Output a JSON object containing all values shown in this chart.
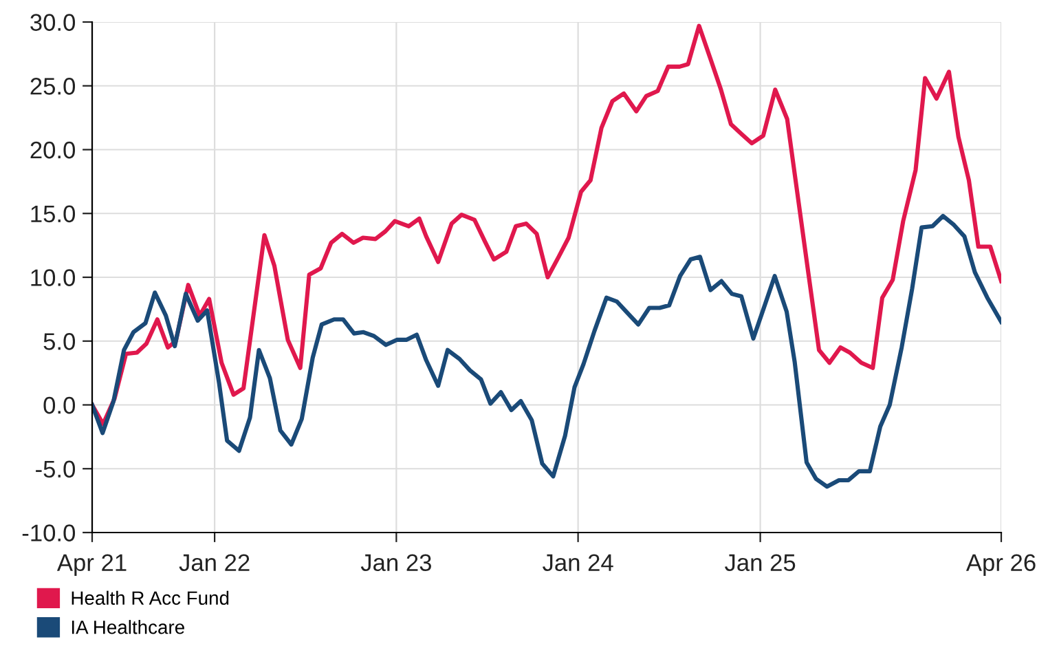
{
  "chart_data": {
    "type": "line",
    "xlim": [
      "2021-04-30",
      "2026-04-30"
    ],
    "xticks": [
      {
        "value": "2021-04-30",
        "label": "Apr 21"
      },
      {
        "value": "2022-01-01",
        "label": "Jan 22"
      },
      {
        "value": "2023-01-01",
        "label": "Jan 23"
      },
      {
        "value": "2024-01-01",
        "label": "Jan 24"
      },
      {
        "value": "2025-01-01",
        "label": "Jan 25"
      },
      {
        "value": "2026-04-30",
        "label": "Apr 26"
      }
    ],
    "ylim": [
      -10,
      30
    ],
    "yticks": [
      {
        "value": -10,
        "label": "-10.0"
      },
      {
        "value": -5,
        "label": "-5.0"
      },
      {
        "value": 0,
        "label": "0.0"
      },
      {
        "value": 5,
        "label": "5.0"
      },
      {
        "value": 10,
        "label": "10.0"
      },
      {
        "value": 15,
        "label": "15.0"
      },
      {
        "value": 20,
        "label": "20.0"
      },
      {
        "value": 25,
        "label": "25.0"
      },
      {
        "value": 30,
        "label": "30.0"
      }
    ],
    "grid": true,
    "legend": "bottom left",
    "marker": "none",
    "line_style": "solid",
    "series": [
      {
        "name": "Health R Acc Fund",
        "color": "#e0184d",
        "x": [
          "2021-04-30",
          "2021-05-22",
          "2021-06-14",
          "2021-07-07",
          "2021-07-29",
          "2021-08-17",
          "2021-09-08",
          "2021-09-29",
          "2021-10-15",
          "2021-11-09",
          "2021-12-02",
          "2021-12-21",
          "2022-01-15",
          "2022-02-08",
          "2022-02-28",
          "2022-04-11",
          "2022-05-01",
          "2022-05-28",
          "2022-06-22",
          "2022-07-10",
          "2022-08-02",
          "2022-08-23",
          "2022-09-14",
          "2022-10-07",
          "2022-10-26",
          "2022-11-20",
          "2022-12-10",
          "2022-12-29",
          "2023-01-26",
          "2023-02-16",
          "2023-03-02",
          "2023-03-26",
          "2023-04-22",
          "2023-05-12",
          "2023-06-07",
          "2023-06-28",
          "2023-07-16",
          "2023-08-10",
          "2023-08-29",
          "2023-09-19",
          "2023-10-10",
          "2023-11-01",
          "2023-11-23",
          "2023-12-13",
          "2024-01-07",
          "2024-01-26",
          "2024-02-17",
          "2024-03-10",
          "2024-04-02",
          "2024-04-27",
          "2024-05-17",
          "2024-06-09",
          "2024-06-30",
          "2024-07-23",
          "2024-08-09",
          "2024-08-31",
          "2024-09-24",
          "2024-10-14",
          "2024-11-03",
          "2024-11-25",
          "2024-12-15",
          "2025-01-07",
          "2025-01-31",
          "2025-02-24",
          "2025-04-08",
          "2025-04-29",
          "2025-05-20",
          "2025-06-11",
          "2025-06-30",
          "2025-07-23",
          "2025-08-15",
          "2025-09-03",
          "2025-09-24",
          "2025-10-15",
          "2025-11-09",
          "2025-11-28",
          "2025-12-21",
          "2026-01-15",
          "2026-02-03",
          "2026-02-24",
          "2026-03-15",
          "2026-04-08",
          "2026-04-30"
        ],
        "values": [
          0,
          -1.5,
          0.5,
          4.0,
          4.1,
          4.8,
          6.7,
          4.5,
          5.0,
          9.4,
          7.0,
          8.3,
          3.3,
          0.8,
          1.3,
          13.3,
          10.9,
          5.1,
          2.9,
          10.2,
          10.7,
          12.7,
          13.4,
          12.7,
          13.1,
          13.0,
          13.6,
          14.4,
          14.0,
          14.6,
          13.2,
          11.2,
          14.2,
          14.9,
          14.5,
          12.8,
          11.4,
          12.0,
          14.0,
          14.2,
          13.4,
          10.0,
          11.6,
          13.1,
          16.7,
          17.6,
          21.7,
          23.8,
          24.4,
          23.0,
          24.2,
          24.6,
          26.5,
          26.5,
          26.7,
          29.7,
          27.0,
          24.7,
          22.0,
          21.2,
          20.5,
          21.1,
          24.7,
          22.4,
          10.2,
          4.3,
          3.3,
          4.5,
          4.1,
          3.3,
          2.9,
          8.4,
          9.8,
          14.4,
          18.4,
          25.6,
          24.0,
          26.1,
          21.0,
          17.6,
          12.4,
          12.4,
          9.7
        ]
      },
      {
        "name": "IA Healthcare",
        "color": "#1a4a78",
        "x": [
          "2021-04-30",
          "2021-05-21",
          "2021-06-12",
          "2021-07-03",
          "2021-07-22",
          "2021-08-15",
          "2021-09-03",
          "2021-09-25",
          "2021-10-13",
          "2021-11-04",
          "2021-11-28",
          "2021-12-17",
          "2022-01-10",
          "2022-01-26",
          "2022-02-19",
          "2022-03-13",
          "2022-03-31",
          "2022-04-22",
          "2022-05-13",
          "2022-06-04",
          "2022-06-25",
          "2022-07-17",
          "2022-08-04",
          "2022-08-29",
          "2022-09-16",
          "2022-10-08",
          "2022-10-27",
          "2022-11-17",
          "2022-12-11",
          "2023-01-02",
          "2023-01-21",
          "2023-02-11",
          "2023-03-02",
          "2023-03-26",
          "2023-04-14",
          "2023-05-08",
          "2023-05-29",
          "2023-06-20",
          "2023-07-09",
          "2023-07-30",
          "2023-08-20",
          "2023-09-08",
          "2023-09-30",
          "2023-10-21",
          "2023-11-12",
          "2023-12-06",
          "2023-12-25",
          "2024-01-12",
          "2024-02-03",
          "2024-02-27",
          "2024-03-19",
          "2024-04-07",
          "2024-05-01",
          "2024-05-23",
          "2024-06-13",
          "2024-07-02",
          "2024-07-24",
          "2024-08-14",
          "2024-09-02",
          "2024-09-23",
          "2024-10-15",
          "2024-11-05",
          "2024-11-24",
          "2024-12-18",
          "2025-01-09",
          "2025-01-30",
          "2025-02-23",
          "2025-03-11",
          "2025-04-04",
          "2025-04-23",
          "2025-05-15",
          "2025-06-08",
          "2025-06-27",
          "2025-07-18",
          "2025-08-09",
          "2025-08-30",
          "2025-09-18",
          "2025-10-12",
          "2025-11-02",
          "2025-11-21",
          "2025-12-13",
          "2026-01-03",
          "2026-01-25",
          "2026-02-15",
          "2026-03-08",
          "2026-04-02",
          "2026-04-30"
        ],
        "values": [
          0,
          -2.2,
          0.3,
          4.3,
          5.7,
          6.4,
          8.8,
          7.0,
          4.6,
          8.7,
          6.6,
          7.4,
          1.7,
          -2.8,
          -3.6,
          -1.0,
          4.3,
          2.1,
          -2.0,
          -3.1,
          -1.1,
          3.7,
          6.3,
          6.7,
          6.7,
          5.6,
          5.7,
          5.4,
          4.7,
          5.1,
          5.1,
          5.5,
          3.5,
          1.5,
          4.3,
          3.6,
          2.7,
          2.0,
          0.1,
          1.0,
          -0.4,
          0.3,
          -1.2,
          -4.6,
          -5.6,
          -2.4,
          1.4,
          3.2,
          5.8,
          8.4,
          8.1,
          7.3,
          6.3,
          7.6,
          7.6,
          7.8,
          10.1,
          11.4,
          11.6,
          9.0,
          9.7,
          8.7,
          8.5,
          5.2,
          7.7,
          10.1,
          7.3,
          3.4,
          -4.5,
          -5.8,
          -6.4,
          -5.9,
          -5.9,
          -5.2,
          -5.2,
          -1.7,
          0.0,
          4.5,
          9.1,
          13.9,
          14.0,
          14.8,
          14.1,
          13.2,
          10.4,
          8.4,
          6.5
        ]
      }
    ]
  }
}
